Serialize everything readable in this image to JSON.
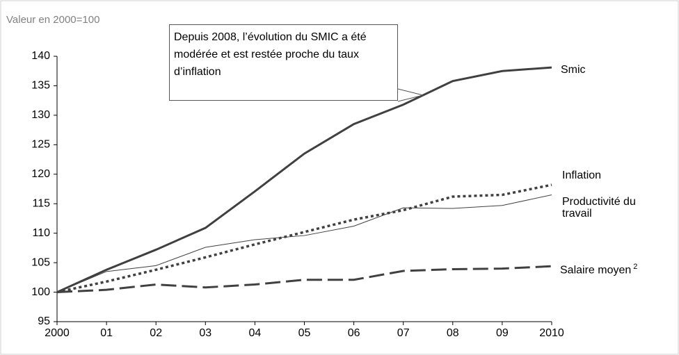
{
  "chart_data": {
    "type": "line",
    "y_label": "Valeur en 2000=100",
    "annotation": "Depuis 2008, l’évolution du SMIC a été modérée et est restée proche du taux d’inflation",
    "categories": [
      "2000",
      "01",
      "02",
      "03",
      "04",
      "05",
      "06",
      "07",
      "08",
      "09",
      "2010"
    ],
    "ylim": [
      95,
      140
    ],
    "yticks": [
      95,
      100,
      105,
      110,
      115,
      120,
      125,
      130,
      135,
      140
    ],
    "series": [
      {
        "name": "Smic",
        "color": "#404040",
        "style": "solid",
        "width": 3,
        "values": [
          100,
          103.8,
          107.2,
          110.9,
          117.1,
          123.5,
          128.5,
          131.8,
          135.8,
          137.5,
          138.1
        ]
      },
      {
        "name": "Inflation",
        "color": "#404040",
        "style": "dotted",
        "width": 3.5,
        "values": [
          100,
          101.8,
          103.8,
          105.9,
          108.1,
          110.2,
          112.3,
          113.9,
          116.2,
          116.5,
          118.2
        ]
      },
      {
        "name": "Productivité du travail",
        "color": "#404040",
        "style": "solid",
        "width": 1,
        "values": [
          100,
          103.5,
          104.5,
          107.6,
          108.9,
          109.6,
          111.2,
          114.3,
          114.2,
          114.7,
          116.5
        ]
      },
      {
        "name": "Salaire moyen",
        "footnote": "2",
        "color": "#404040",
        "style": "dashed",
        "width": 3,
        "values": [
          100,
          100.4,
          101.3,
          100.8,
          101.3,
          102.1,
          102.1,
          103.6,
          103.9,
          104.0,
          104.4
        ]
      }
    ]
  }
}
